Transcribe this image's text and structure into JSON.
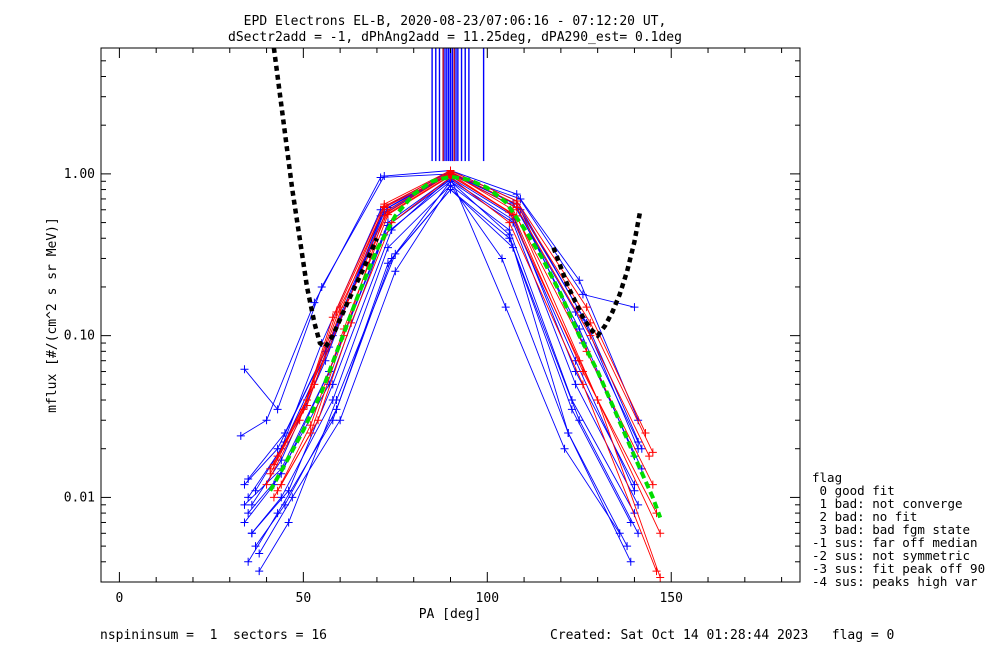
{
  "chart_data": {
    "type": "line",
    "title": "EPD Electrons EL-B, 2020-08-23/07:06:16 - 07:12:20 UT,",
    "subtitle": "dSectr2add = -1, dPhAng2add = 11.25deg, dPA290_est=   0.1deg",
    "xlabel": "PA [deg]",
    "ylabel": "mflux [#/(cm^2 s sr MeV)]",
    "xlim": [
      -5,
      185
    ],
    "ylim": [
      0.003,
      6
    ],
    "yscale": "log",
    "x_ticks": [
      0,
      50,
      100,
      150
    ],
    "x_tick_labels": [
      "0",
      "50",
      "100",
      "150"
    ],
    "y_ticks": [
      0.01,
      0.1,
      1.0
    ],
    "y_tick_labels": [
      "0.01",
      "0.10",
      "1.00"
    ],
    "colors": {
      "flag0": "#0000ff",
      "flag_other": "#ff0000",
      "fit": "#00dd00",
      "model": "#000000"
    },
    "vertical_lines": {
      "color": "#0000ff",
      "x": [
        85,
        86,
        87,
        88,
        88.5,
        89,
        89.5,
        90,
        90.5,
        91,
        91.5,
        92,
        93,
        94,
        95,
        99
      ],
      "y_range": [
        1.2,
        6
      ]
    },
    "vertical_lines_red": [
      88,
      91
    ],
    "series": [
      {
        "color": "#0000ff",
        "x": [
          34,
          43,
          55,
          72,
          90,
          108,
          126,
          140
        ],
        "y": [
          0.062,
          0.035,
          0.2,
          0.97,
          1.05,
          0.75,
          0.18,
          0.15
        ]
      },
      {
        "color": "#0000ff",
        "x": [
          33,
          40,
          53,
          71,
          90,
          109,
          125,
          141
        ],
        "y": [
          0.024,
          0.03,
          0.16,
          0.95,
          1.0,
          0.7,
          0.22,
          0.03
        ]
      },
      {
        "color": "#0000ff",
        "x": [
          34,
          43,
          56,
          72,
          90,
          108,
          127,
          142
        ],
        "y": [
          0.012,
          0.02,
          0.08,
          0.6,
          1.0,
          0.65,
          0.12,
          0.02
        ]
      },
      {
        "color": "#0000ff",
        "x": [
          35,
          44,
          57,
          73,
          90,
          107,
          124,
          140
        ],
        "y": [
          0.008,
          0.014,
          0.06,
          0.5,
          0.95,
          0.55,
          0.06,
          0.012
        ]
      },
      {
        "color": "#0000ff",
        "x": [
          34,
          42,
          57,
          72,
          90,
          107,
          124,
          141
        ],
        "y": [
          0.007,
          0.012,
          0.05,
          0.42,
          0.9,
          0.5,
          0.05,
          0.009
        ]
      },
      {
        "color": "#0000ff",
        "x": [
          36,
          44,
          58,
          73,
          90,
          106,
          123,
          140
        ],
        "y": [
          0.006,
          0.01,
          0.04,
          0.35,
          0.85,
          0.45,
          0.04,
          0.008
        ]
      },
      {
        "color": "#0000ff",
        "x": [
          37,
          45,
          59,
          74,
          90,
          106,
          123,
          139
        ],
        "y": [
          0.005,
          0.009,
          0.035,
          0.3,
          0.8,
          0.4,
          0.035,
          0.007
        ]
      },
      {
        "color": "#0000ff",
        "x": [
          35,
          43,
          58,
          73,
          90,
          107,
          125,
          141
        ],
        "y": [
          0.004,
          0.008,
          0.03,
          0.28,
          0.8,
          0.35,
          0.03,
          0.006
        ]
      },
      {
        "color": "#0000ff",
        "x": [
          38,
          46,
          59,
          75,
          90,
          106,
          122,
          138
        ],
        "y": [
          0.0035,
          0.007,
          0.04,
          0.32,
          0.9,
          0.42,
          0.025,
          0.005
        ]
      },
      {
        "color": "#0000ff",
        "x": [
          36,
          44,
          56,
          71,
          90,
          109,
          126,
          142
        ],
        "y": [
          0.009,
          0.017,
          0.07,
          0.55,
          1.0,
          0.6,
          0.09,
          0.015
        ]
      },
      {
        "color": "#0000ff",
        "x": [
          35,
          44,
          55,
          71,
          90,
          108,
          126,
          141
        ],
        "y": [
          0.01,
          0.02,
          0.09,
          0.6,
          1.05,
          0.68,
          0.13,
          0.02
        ]
      },
      {
        "color": "#0000ff",
        "x": [
          37,
          45,
          57,
          72,
          90,
          108,
          125,
          140
        ],
        "y": [
          0.011,
          0.022,
          0.085,
          0.58,
          1.0,
          0.62,
          0.11,
          0.018
        ]
      },
      {
        "color": "#0000ff",
        "x": [
          36,
          46,
          58,
          74,
          90,
          105,
          121,
          136
        ],
        "y": [
          0.006,
          0.011,
          0.05,
          0.45,
          0.95,
          0.15,
          0.02,
          0.006
        ]
      },
      {
        "color": "#0000ff",
        "x": [
          38,
          47,
          60,
          75,
          90,
          104,
          122,
          139
        ],
        "y": [
          0.0045,
          0.01,
          0.03,
          0.25,
          0.85,
          0.3,
          0.025,
          0.004
        ]
      },
      {
        "color": "#0000ff",
        "x": [
          34,
          44,
          57,
          73,
          90,
          107,
          124,
          140
        ],
        "y": [
          0.009,
          0.015,
          0.06,
          0.48,
          0.92,
          0.52,
          0.07,
          0.011
        ]
      },
      {
        "color": "#0000ff",
        "x": [
          35,
          45,
          58,
          73,
          90,
          107,
          124,
          141
        ],
        "y": [
          0.013,
          0.025,
          0.1,
          0.62,
          1.02,
          0.66,
          0.14,
          0.022
        ]
      },
      {
        "color": "#ff0000",
        "x": [
          40,
          49,
          58,
          72,
          90,
          108,
          127,
          143
        ],
        "y": [
          0.012,
          0.03,
          0.13,
          0.65,
          1.05,
          0.68,
          0.15,
          0.025
        ]
      },
      {
        "color": "#ff0000",
        "x": [
          41,
          50,
          59,
          72,
          90,
          108,
          128,
          144
        ],
        "y": [
          0.014,
          0.035,
          0.14,
          0.62,
          1.0,
          0.62,
          0.1,
          0.018
        ]
      },
      {
        "color": "#ff0000",
        "x": [
          42,
          51,
          60,
          73,
          90,
          107,
          127,
          145
        ],
        "y": [
          0.016,
          0.04,
          0.15,
          0.6,
          1.02,
          0.6,
          0.08,
          0.012
        ]
      },
      {
        "color": "#ff0000",
        "x": [
          42,
          52,
          61,
          72,
          90,
          107,
          126,
          146
        ],
        "y": [
          0.01,
          0.025,
          0.1,
          0.55,
          0.98,
          0.56,
          0.06,
          0.008
        ]
      },
      {
        "color": "#ff0000",
        "x": [
          43,
          53,
          62,
          73,
          90,
          106,
          125,
          147
        ],
        "y": [
          0.018,
          0.05,
          0.16,
          0.58,
          1.0,
          0.58,
          0.07,
          0.006
        ]
      },
      {
        "color": "#ff0000",
        "x": [
          44,
          54,
          63,
          74,
          90,
          106,
          126,
          146
        ],
        "y": [
          0.012,
          0.03,
          0.12,
          0.5,
          0.95,
          0.5,
          0.05,
          0.0035
        ]
      },
      {
        "color": "#ff0000",
        "x": [
          41,
          51,
          60,
          72,
          90,
          108,
          128,
          145
        ],
        "y": [
          0.015,
          0.037,
          0.14,
          0.63,
          1.03,
          0.65,
          0.12,
          0.019
        ]
      },
      {
        "color": "#ff0000",
        "x": [
          43,
          52,
          61,
          73,
          90,
          108,
          130,
          147
        ],
        "y": [
          0.011,
          0.028,
          0.11,
          0.56,
          0.97,
          0.55,
          0.04,
          0.0032
        ]
      }
    ],
    "fit_curve": {
      "color": "#00dd00",
      "x": [
        41,
        45,
        50,
        55,
        60,
        65,
        70,
        75,
        80,
        85,
        90,
        95,
        100,
        105,
        110,
        115,
        120,
        125,
        130,
        135,
        140,
        145,
        147
      ],
      "y": [
        0.011,
        0.016,
        0.026,
        0.045,
        0.09,
        0.18,
        0.34,
        0.55,
        0.75,
        0.9,
        0.96,
        0.92,
        0.82,
        0.67,
        0.46,
        0.3,
        0.18,
        0.1,
        0.06,
        0.033,
        0.018,
        0.01,
        0.0075
      ]
    },
    "model_curve": {
      "color": "#000000",
      "x": [
        42,
        43,
        45,
        47,
        49,
        51,
        53,
        54.5,
        56,
        58,
        62,
        66,
        70
      ],
      "y": [
        6.0,
        4.0,
        1.8,
        0.8,
        0.4,
        0.2,
        0.12,
        0.09,
        0.085,
        0.1,
        0.16,
        0.25,
        0.4
      ]
    },
    "model_curve_right": {
      "color": "#000000",
      "x": [
        118,
        122,
        126,
        128,
        130,
        132,
        134,
        136,
        138,
        140,
        141.5
      ],
      "y": [
        0.35,
        0.2,
        0.13,
        0.11,
        0.1,
        0.115,
        0.14,
        0.18,
        0.25,
        0.38,
        0.58
      ]
    }
  },
  "legend": {
    "title": "flag",
    "items": [
      " 0 good fit",
      " 1 bad: not converge",
      " 2 bad: no fit",
      " 3 bad: bad fgm state",
      "-1 sus: far off median",
      "-2 sus: not symmetric",
      "-3 sus: fit peak off 90",
      "-4 sus: peaks high var"
    ]
  },
  "footer": {
    "left": "nspininsum =  1  sectors = 16",
    "right": "Created: Sat Oct 14 01:28:44 2023   flag = 0"
  }
}
